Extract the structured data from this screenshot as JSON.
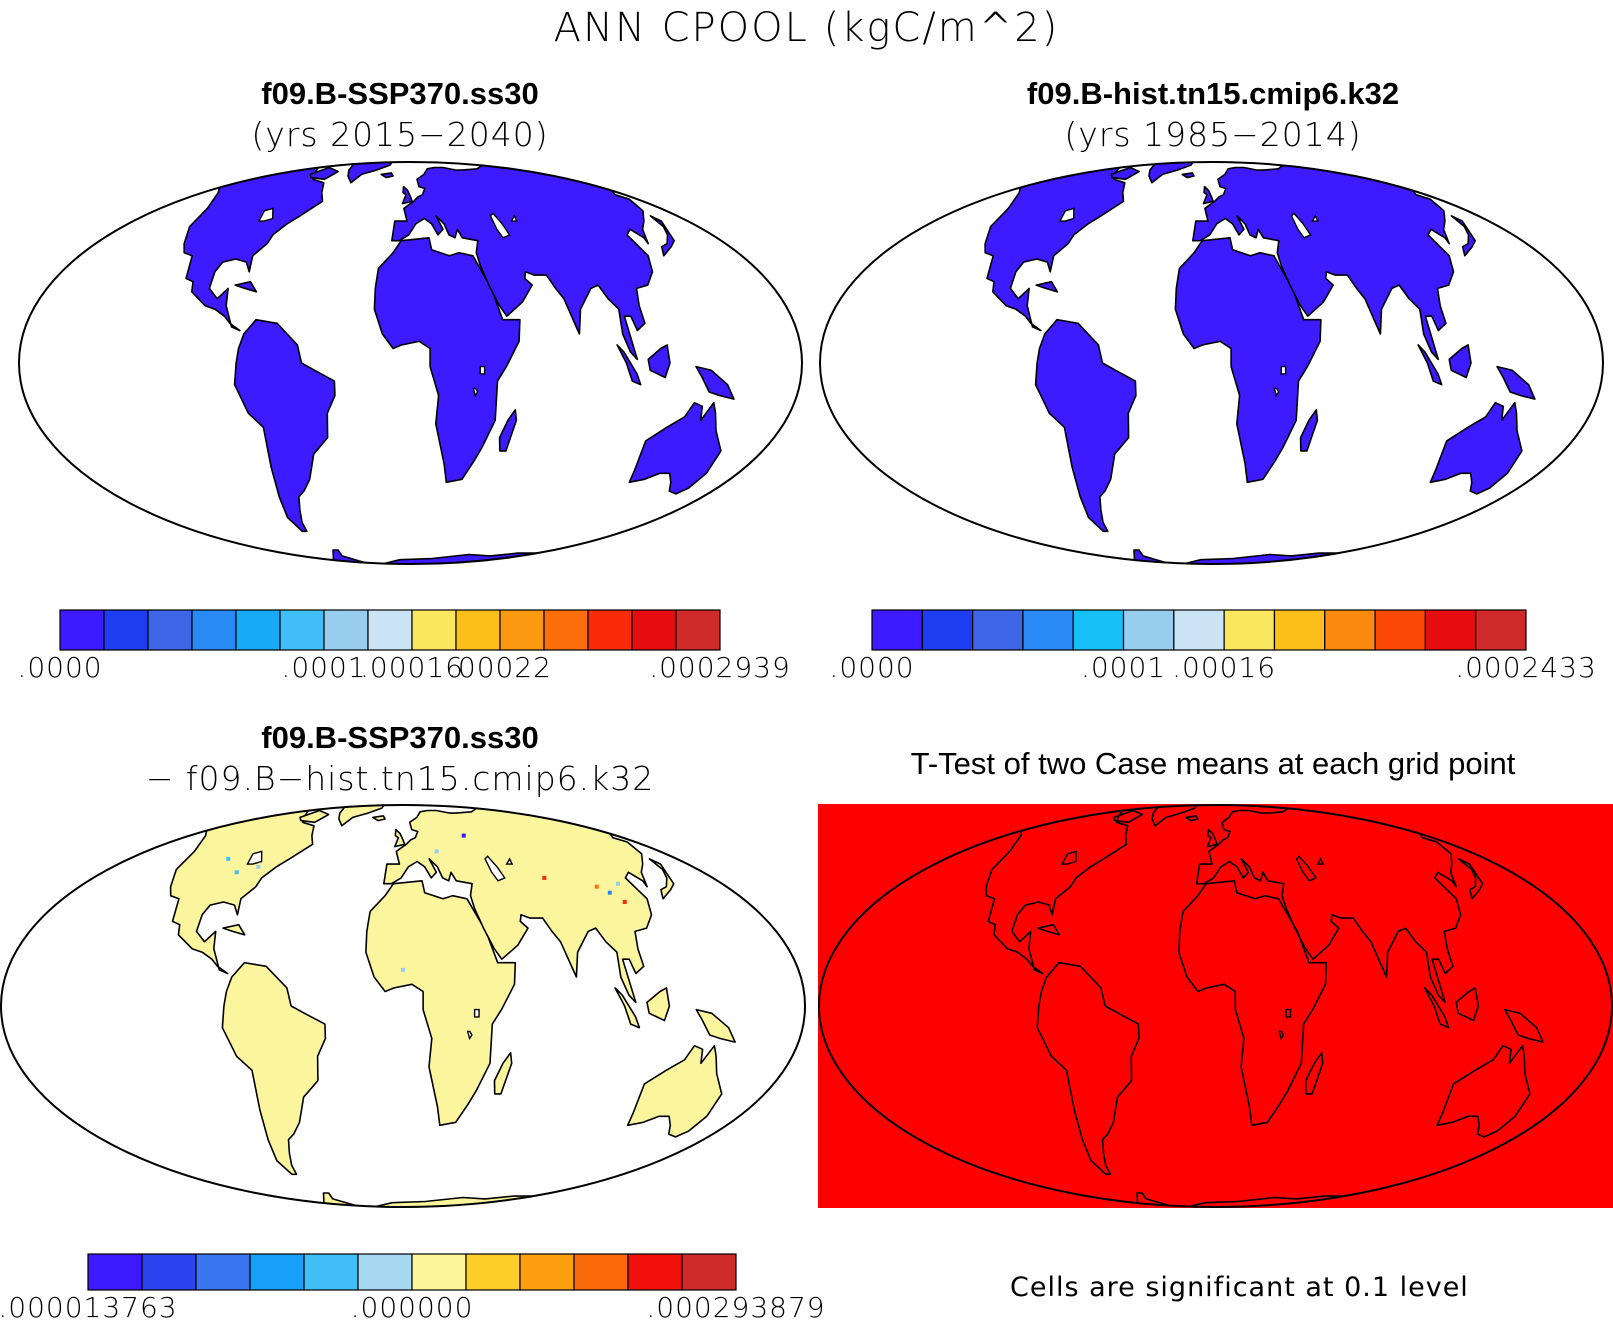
{
  "title": "ANN CPOOL (kgC/m^2)",
  "panels": {
    "top_left": {
      "title": "f09.B-SSP370.ss30",
      "subtitle": "(yrs 2015−2040)"
    },
    "top_right": {
      "title": "f09.B-hist.tn15.cmip6.k32",
      "subtitle": "(yrs 1985−2014)"
    },
    "bottom_left": {
      "title": "f09.B-SSP370.ss30",
      "subtitle": "− f09.B−hist.tn15.cmip6.k32"
    },
    "bottom_right": {
      "title": "T-Test of two Case means at each grid point",
      "note": "Cells are significant at 0.1 level"
    }
  },
  "colorbars": {
    "top_left": {
      "colors": [
        "#3d1aff",
        "#1f3df0",
        "#3f66e6",
        "#2a8af5",
        "#16aaf7",
        "#3fbff5",
        "#99cdee",
        "#cbe5f6",
        "#fbe660",
        "#fbbe1a",
        "#fb9a10",
        "#fb6e0a",
        "#fb2a08",
        "#e60d10",
        "#d12a2a"
      ],
      "labels": [
        ".0000",
        ".0001",
        ".00016",
        ".00022",
        ".0002939"
      ],
      "label_positions": [
        0,
        6,
        8,
        10,
        15
      ]
    },
    "top_right": {
      "colors": [
        "#3d1aff",
        "#1f3df0",
        "#3f66e6",
        "#2a8af5",
        "#16c0f7",
        "#99cdee",
        "#cbe5f6",
        "#fbe660",
        "#fbbe1a",
        "#fb8a10",
        "#fb4a08",
        "#e60d10",
        "#d12a2a"
      ],
      "labels": [
        ".0000",
        ".0001",
        ".00016",
        ".0002433"
      ],
      "label_positions": [
        0,
        5,
        7,
        13
      ]
    },
    "bottom_left": {
      "colors": [
        "#3d1aff",
        "#2a44f0",
        "#3a76f0",
        "#16a0f7",
        "#3fbff5",
        "#a8d9f2",
        "#fdf59a",
        "#fdce2a",
        "#fda010",
        "#fb6a0a",
        "#f0120a",
        "#d12a2a"
      ],
      "labels": [
        ".000013763",
        ".000000",
        ".000293879"
      ],
      "label_positions": [
        0,
        6,
        12
      ]
    }
  },
  "map_colors": {
    "land_top": "#3d1aff",
    "land_diff": "#fbf59e",
    "ttest_fill": "#ff0000",
    "outline": "#000000"
  }
}
